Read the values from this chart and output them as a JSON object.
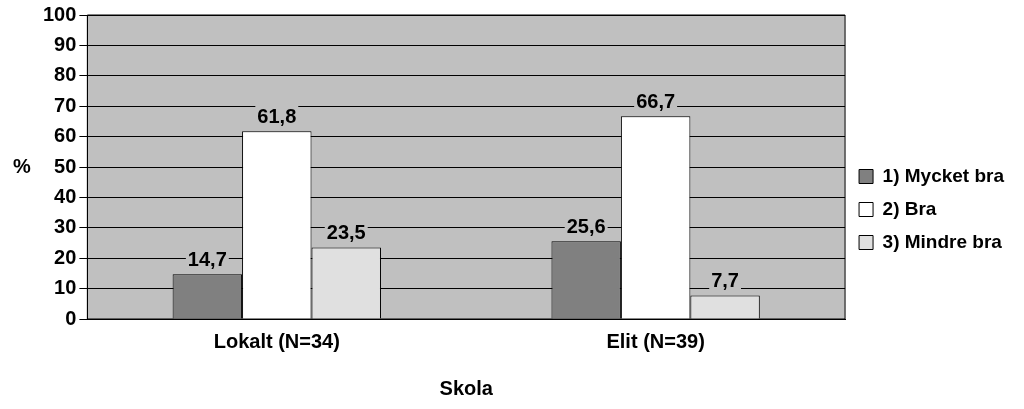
{
  "chart_data": {
    "type": "bar",
    "xlabel": "Skola",
    "ylabel": "%",
    "categories": [
      "Lokalt (N=34)",
      "Elit (N=39)"
    ],
    "series": [
      {
        "name": "1) Mycket bra",
        "color": "#808080",
        "values": [
          14.7,
          25.6
        ],
        "value_labels": [
          "14,7",
          "25,6"
        ]
      },
      {
        "name": "2) Bra",
        "color": "#ffffff",
        "values": [
          61.8,
          66.7
        ],
        "value_labels": [
          "61,8",
          "66,7"
        ]
      },
      {
        "name": "3) Mindre bra",
        "color": "#e0e0e0",
        "values": [
          23.5,
          7.7
        ],
        "value_labels": [
          "23,5",
          "7,7"
        ]
      }
    ],
    "ylim": [
      0,
      100
    ],
    "yticks": [
      0,
      10,
      20,
      30,
      40,
      50,
      60,
      70,
      80,
      90,
      100
    ],
    "grid": "y",
    "legend": "right"
  }
}
